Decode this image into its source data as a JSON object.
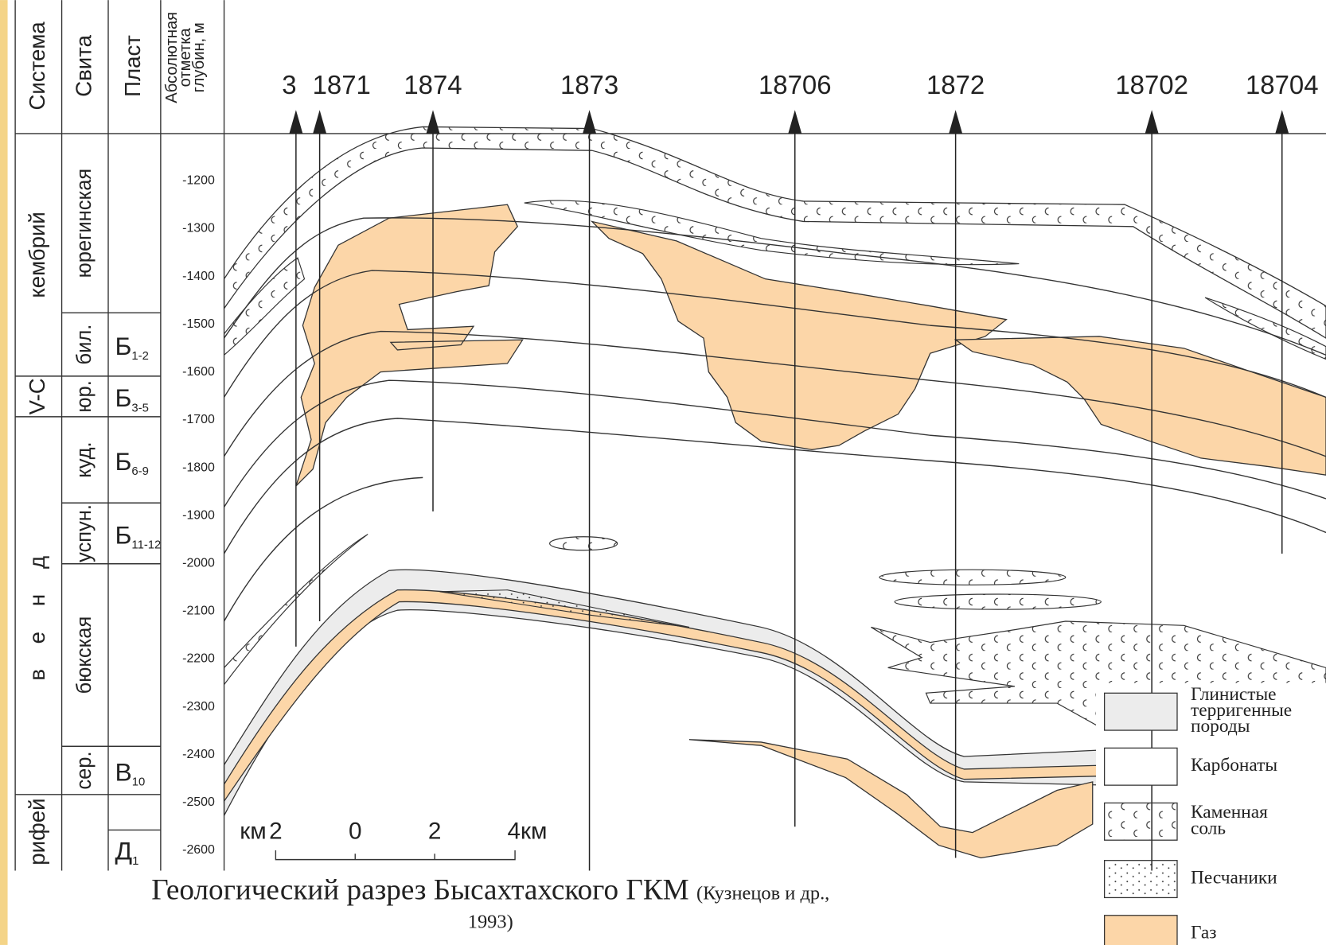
{
  "header": {
    "system": "Система",
    "suite": "Свита",
    "layer": "Пласт",
    "depth": [
      "Абсолютная",
      "отметка",
      "глубин, м"
    ]
  },
  "systems": [
    "кембрий",
    "V-C",
    "венд",
    "рифей"
  ],
  "suites": [
    "юрегинская",
    "бил.",
    "юр.",
    "куд.",
    "успун.",
    "бюкская",
    "сер."
  ],
  "layers": [
    {
      "name": "Б",
      "index": "1-2"
    },
    {
      "name": "Б",
      "index": "3-5"
    },
    {
      "name": "Б",
      "index": "6-9"
    },
    {
      "name": "Б",
      "index": "11-12"
    },
    {
      "name": "В",
      "index": "10"
    },
    {
      "name": "Д",
      "index": "1"
    }
  ],
  "depth_ticks": [
    -1200,
    -1300,
    -1400,
    -1500,
    -1600,
    -1700,
    -1800,
    -1900,
    -2000,
    -2100,
    -2200,
    -2300,
    -2400,
    -2500,
    -2600
  ],
  "wells": [
    "3",
    "1871",
    "1874",
    "1873",
    "18706",
    "1872",
    "18702",
    "18704"
  ],
  "scale_bar": {
    "unit": "км",
    "labels": [
      "2",
      "0",
      "2",
      "4км"
    ]
  },
  "legend": [
    {
      "label": [
        "Глинистые",
        "терригенные",
        "породы"
      ]
    },
    {
      "label": [
        "Карбонаты"
      ]
    },
    {
      "label": [
        "Каменная",
        "соль"
      ]
    },
    {
      "label": [
        "Песчаники"
      ]
    },
    {
      "label": [
        "Газ"
      ]
    }
  ],
  "caption": {
    "title": "Геологический разрез Бысахтахского ГКМ",
    "source": [
      "(Кузнецов и др.,",
      "1993)"
    ]
  }
}
